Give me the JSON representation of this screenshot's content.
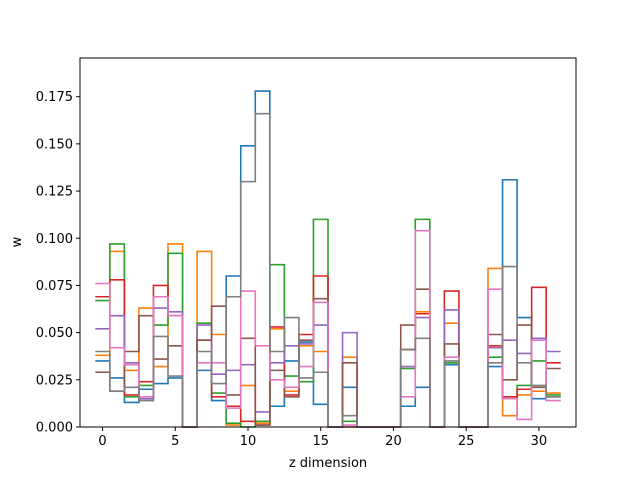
{
  "chart_data": {
    "type": "step",
    "title": "",
    "xlabel": "z dimension",
    "ylabel": "w",
    "xlim": [
      -1.55,
      32.55
    ],
    "ylim": [
      0,
      0.1955
    ],
    "xticks": [
      0,
      5,
      10,
      15,
      20,
      25,
      30
    ],
    "xtick_labels": [
      "0",
      "5",
      "10",
      "15",
      "20",
      "25",
      "30"
    ],
    "yticks": [
      0.0,
      0.025,
      0.05,
      0.075,
      0.1,
      0.125,
      0.15,
      0.175
    ],
    "ytick_labels": [
      "0.000",
      "0.025",
      "0.050",
      "0.075",
      "0.100",
      "0.125",
      "0.150",
      "0.175"
    ],
    "x": [
      0,
      1,
      2,
      3,
      4,
      5,
      6,
      7,
      8,
      9,
      10,
      11,
      12,
      13,
      14,
      15,
      16,
      17,
      18,
      19,
      20,
      21,
      22,
      23,
      24,
      25,
      26,
      27,
      28,
      29,
      30,
      31
    ],
    "series": [
      {
        "color": "#1f77b4",
        "values": [
          0.035,
          0.026,
          0.013,
          0.02,
          0.023,
          0.026,
          0.0,
          0.03,
          0.014,
          0.08,
          0.149,
          0.178,
          0.011,
          0.035,
          0.045,
          0.012,
          0.0,
          0.021,
          0.0,
          0.0,
          0.0,
          0.011,
          0.021,
          0.0,
          0.033,
          0.0,
          0.0,
          0.032,
          0.131,
          0.058,
          0.015,
          0.016
        ]
      },
      {
        "color": "#ff7f0e",
        "values": [
          0.038,
          0.093,
          0.03,
          0.063,
          0.032,
          0.097,
          0.0,
          0.093,
          0.049,
          0.001,
          0.022,
          0.002,
          0.052,
          0.019,
          0.043,
          0.04,
          0.0,
          0.037,
          0.0,
          0.0,
          0.0,
          0.041,
          0.061,
          0.0,
          0.055,
          0.0,
          0.0,
          0.084,
          0.006,
          0.017,
          0.019,
          0.018
        ]
      },
      {
        "color": "#2ca02c",
        "values": [
          0.067,
          0.097,
          0.016,
          0.022,
          0.054,
          0.092,
          0.0,
          0.055,
          0.018,
          0.002,
          0.0,
          0.003,
          0.086,
          0.027,
          0.024,
          0.11,
          0.0,
          0.003,
          0.0,
          0.0,
          0.0,
          0.031,
          0.11,
          0.0,
          0.034,
          0.0,
          0.0,
          0.037,
          0.015,
          0.022,
          0.035,
          0.017
        ]
      },
      {
        "color": "#d62728",
        "values": [
          0.069,
          0.078,
          0.017,
          0.024,
          0.075,
          0.059,
          0.0,
          0.046,
          0.016,
          0.011,
          0.003,
          0.001,
          0.053,
          0.017,
          0.049,
          0.08,
          0.0,
          0.0,
          0.0,
          0.0,
          0.0,
          0.041,
          0.06,
          0.0,
          0.072,
          0.0,
          0.0,
          0.043,
          0.016,
          0.02,
          0.074,
          0.034
        ]
      },
      {
        "color": "#9467bd",
        "values": [
          0.052,
          0.059,
          0.034,
          0.015,
          0.063,
          0.061,
          0.0,
          0.054,
          0.028,
          0.03,
          0.033,
          0.008,
          0.034,
          0.043,
          0.044,
          0.054,
          0.0,
          0.05,
          0.0,
          0.0,
          0.0,
          0.032,
          0.058,
          0.0,
          0.062,
          0.0,
          0.0,
          0.042,
          0.046,
          0.039,
          0.047,
          0.04
        ]
      },
      {
        "color": "#8c564b",
        "values": [
          0.029,
          0.019,
          0.04,
          0.059,
          0.036,
          0.043,
          0.0,
          0.046,
          0.064,
          0.017,
          0.047,
          0.001,
          0.03,
          0.016,
          0.046,
          0.068,
          0.0,
          0.034,
          0.0,
          0.0,
          0.0,
          0.054,
          0.073,
          0.0,
          0.044,
          0.0,
          0.0,
          0.049,
          0.025,
          0.054,
          0.021,
          0.031
        ]
      },
      {
        "color": "#e377c2",
        "values": [
          0.076,
          0.042,
          0.033,
          0.016,
          0.069,
          0.059,
          0.0,
          0.034,
          0.034,
          0.01,
          0.072,
          0.043,
          0.025,
          0.021,
          0.032,
          0.066,
          0.0,
          0.001,
          0.0,
          0.0,
          0.0,
          0.016,
          0.104,
          0.0,
          0.037,
          0.0,
          0.0,
          0.073,
          0.015,
          0.004,
          0.046,
          0.014
        ]
      },
      {
        "color": "#7f7f7f",
        "values": [
          0.04,
          0.019,
          0.021,
          0.014,
          0.048,
          0.027,
          0.0,
          0.04,
          0.023,
          0.069,
          0.13,
          0.166,
          0.04,
          0.058,
          0.026,
          0.029,
          0.0,
          0.006,
          0.0,
          0.0,
          0.0,
          0.041,
          0.047,
          0.0,
          0.035,
          0.0,
          0.0,
          0.034,
          0.085,
          0.034,
          0.022,
          0.016
        ]
      }
    ]
  }
}
